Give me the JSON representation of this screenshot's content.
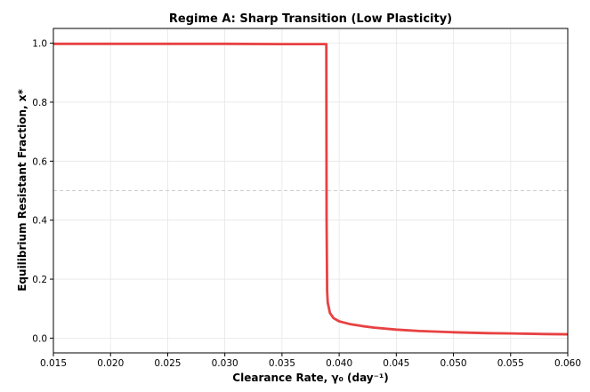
{
  "chart_data": {
    "type": "line",
    "title": "Regime A: Sharp Transition (Low Plasticity)",
    "xlabel": "Clearance Rate, γ₀ (day⁻¹)",
    "ylabel": "Equilibrium Resistant Fraction, x*",
    "xlim": [
      0.015,
      0.06
    ],
    "ylim": [
      -0.05,
      1.05
    ],
    "xticks": [
      "0.015",
      "0.020",
      "0.025",
      "0.030",
      "0.035",
      "0.040",
      "0.045",
      "0.050",
      "0.055",
      "0.060"
    ],
    "yticks": [
      "0.0",
      "0.2",
      "0.4",
      "0.6",
      "0.8",
      "1.0"
    ],
    "grid": true,
    "reference_line": {
      "y": 0.5,
      "style": "dashed",
      "color": "#cccccc"
    },
    "series": [
      {
        "color": "#e84142",
        "x": [
          0.015,
          0.02,
          0.025,
          0.03,
          0.035,
          0.0385,
          0.03888,
          0.0389,
          0.03895,
          0.039,
          0.0392,
          0.0395,
          0.04,
          0.041,
          0.042,
          0.043,
          0.045,
          0.047,
          0.05,
          0.053,
          0.055,
          0.058,
          0.06
        ],
        "y": [
          0.998,
          0.998,
          0.998,
          0.998,
          0.997,
          0.997,
          0.997,
          0.4,
          0.16,
          0.12,
          0.085,
          0.068,
          0.057,
          0.047,
          0.041,
          0.036,
          0.029,
          0.024,
          0.02,
          0.017,
          0.016,
          0.014,
          0.013
        ]
      }
    ]
  }
}
